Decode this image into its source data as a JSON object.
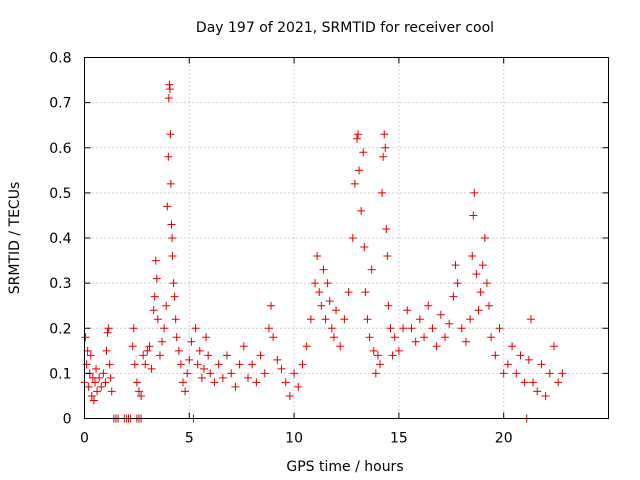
{
  "chart_data": {
    "type": "scatter",
    "title": "Day 197 of 2021, SRMTID for receiver cool",
    "xlabel": "GPS time / hours",
    "ylabel": "SRMTID / TECUs",
    "xlim": [
      0,
      25
    ],
    "ylim": [
      0,
      0.8
    ],
    "x_ticks": [
      0,
      5,
      10,
      15,
      20
    ],
    "x_tick_labels": [
      "0",
      "5",
      "10",
      "15",
      "20"
    ],
    "y_ticks": [
      0,
      0.1,
      0.2,
      0.3,
      0.4,
      0.5,
      0.6,
      0.7,
      0.8
    ],
    "y_tick_labels": [
      "0",
      "0.1",
      "0.2",
      "0.3",
      "0.4",
      "0.5",
      "0.6",
      "0.7",
      "0.8"
    ],
    "grid": true,
    "marker": "plus",
    "color": "#e00000",
    "series": [
      {
        "name": "SRMTID",
        "points": [
          [
            0.0,
            0.08
          ],
          [
            0.05,
            0.18
          ],
          [
            0.1,
            0.12
          ],
          [
            0.15,
            0.15
          ],
          [
            0.2,
            0.07
          ],
          [
            0.25,
            0.1
          ],
          [
            0.3,
            0.14
          ],
          [
            0.35,
            0.05
          ],
          [
            0.4,
            0.09
          ],
          [
            0.45,
            0.04
          ],
          [
            0.5,
            0.08
          ],
          [
            0.55,
            0.11
          ],
          [
            0.6,
            0.06
          ],
          [
            0.7,
            0.09
          ],
          [
            0.8,
            0.07
          ],
          [
            0.9,
            0.1
          ],
          [
            1.0,
            0.08
          ],
          [
            1.05,
            0.15
          ],
          [
            1.1,
            0.19
          ],
          [
            1.15,
            0.2
          ],
          [
            1.2,
            0.12
          ],
          [
            1.25,
            0.09
          ],
          [
            1.3,
            0.06
          ],
          [
            1.4,
            0.0
          ],
          [
            1.5,
            0.0
          ],
          [
            1.6,
            0.0
          ],
          [
            1.9,
            0.0
          ],
          [
            2.0,
            0.0
          ],
          [
            2.1,
            0.0
          ],
          [
            2.2,
            0.0
          ],
          [
            2.5,
            0.0
          ],
          [
            2.6,
            0.0
          ],
          [
            2.7,
            0.0
          ],
          [
            2.3,
            0.16
          ],
          [
            2.35,
            0.2
          ],
          [
            2.4,
            0.12
          ],
          [
            2.5,
            0.08
          ],
          [
            2.6,
            0.06
          ],
          [
            2.7,
            0.05
          ],
          [
            2.8,
            0.14
          ],
          [
            2.9,
            0.12
          ],
          [
            3.0,
            0.15
          ],
          [
            3.1,
            0.16
          ],
          [
            3.2,
            0.11
          ],
          [
            3.3,
            0.24
          ],
          [
            3.35,
            0.27
          ],
          [
            3.4,
            0.35
          ],
          [
            3.45,
            0.31
          ],
          [
            3.5,
            0.22
          ],
          [
            3.6,
            0.14
          ],
          [
            3.7,
            0.17
          ],
          [
            3.8,
            0.2
          ],
          [
            3.9,
            0.25
          ],
          [
            3.95,
            0.47
          ],
          [
            4.0,
            0.58
          ],
          [
            4.02,
            0.71
          ],
          [
            4.05,
            0.74
          ],
          [
            4.08,
            0.73
          ],
          [
            4.1,
            0.63
          ],
          [
            4.12,
            0.52
          ],
          [
            4.15,
            0.43
          ],
          [
            4.18,
            0.4
          ],
          [
            4.2,
            0.36
          ],
          [
            4.25,
            0.3
          ],
          [
            4.3,
            0.27
          ],
          [
            4.35,
            0.22
          ],
          [
            4.4,
            0.18
          ],
          [
            4.5,
            0.15
          ],
          [
            4.6,
            0.12
          ],
          [
            4.7,
            0.08
          ],
          [
            4.8,
            0.06
          ],
          [
            4.9,
            0.1
          ],
          [
            5.0,
            0.13
          ],
          [
            5.1,
            0.17
          ],
          [
            5.2,
            0.0
          ],
          [
            5.3,
            0.2
          ],
          [
            5.4,
            0.12
          ],
          [
            5.5,
            0.15
          ],
          [
            5.6,
            0.09
          ],
          [
            5.7,
            0.11
          ],
          [
            5.8,
            0.18
          ],
          [
            5.9,
            0.14
          ],
          [
            6.0,
            0.1
          ],
          [
            6.2,
            0.08
          ],
          [
            6.4,
            0.12
          ],
          [
            6.6,
            0.09
          ],
          [
            6.8,
            0.14
          ],
          [
            7.0,
            0.1
          ],
          [
            7.2,
            0.07
          ],
          [
            7.4,
            0.12
          ],
          [
            7.6,
            0.16
          ],
          [
            7.8,
            0.09
          ],
          [
            8.0,
            0.12
          ],
          [
            8.2,
            0.08
          ],
          [
            8.4,
            0.14
          ],
          [
            8.6,
            0.1
          ],
          [
            8.8,
            0.2
          ],
          [
            8.9,
            0.25
          ],
          [
            9.0,
            0.18
          ],
          [
            9.2,
            0.13
          ],
          [
            9.4,
            0.11
          ],
          [
            9.6,
            0.08
          ],
          [
            9.8,
            0.05
          ],
          [
            10.0,
            0.1
          ],
          [
            10.2,
            0.07
          ],
          [
            10.4,
            0.12
          ],
          [
            10.6,
            0.16
          ],
          [
            10.8,
            0.22
          ],
          [
            11.0,
            0.3
          ],
          [
            11.1,
            0.36
          ],
          [
            11.2,
            0.28
          ],
          [
            11.3,
            0.25
          ],
          [
            11.4,
            0.33
          ],
          [
            11.5,
            0.22
          ],
          [
            11.6,
            0.3
          ],
          [
            11.7,
            0.26
          ],
          [
            11.8,
            0.2
          ],
          [
            11.9,
            0.18
          ],
          [
            12.0,
            0.24
          ],
          [
            12.2,
            0.16
          ],
          [
            12.4,
            0.22
          ],
          [
            12.6,
            0.28
          ],
          [
            12.8,
            0.4
          ],
          [
            12.9,
            0.52
          ],
          [
            13.0,
            0.62
          ],
          [
            13.05,
            0.63
          ],
          [
            13.1,
            0.55
          ],
          [
            13.2,
            0.46
          ],
          [
            13.3,
            0.59
          ],
          [
            13.35,
            0.38
          ],
          [
            13.4,
            0.28
          ],
          [
            13.5,
            0.22
          ],
          [
            13.6,
            0.18
          ],
          [
            13.7,
            0.33
          ],
          [
            13.8,
            0.15
          ],
          [
            13.9,
            0.1
          ],
          [
            14.0,
            0.14
          ],
          [
            14.1,
            0.12
          ],
          [
            14.2,
            0.5
          ],
          [
            14.25,
            0.58
          ],
          [
            14.3,
            0.63
          ],
          [
            14.35,
            0.6
          ],
          [
            14.4,
            0.42
          ],
          [
            14.45,
            0.36
          ],
          [
            14.5,
            0.25
          ],
          [
            14.6,
            0.2
          ],
          [
            14.7,
            0.14
          ],
          [
            14.8,
            0.18
          ],
          [
            15.0,
            0.15
          ],
          [
            15.2,
            0.2
          ],
          [
            15.4,
            0.24
          ],
          [
            15.6,
            0.2
          ],
          [
            15.8,
            0.17
          ],
          [
            16.0,
            0.22
          ],
          [
            16.2,
            0.18
          ],
          [
            16.4,
            0.25
          ],
          [
            16.6,
            0.2
          ],
          [
            16.8,
            0.16
          ],
          [
            17.0,
            0.23
          ],
          [
            17.2,
            0.18
          ],
          [
            17.4,
            0.21
          ],
          [
            17.6,
            0.27
          ],
          [
            17.7,
            0.34
          ],
          [
            17.8,
            0.3
          ],
          [
            18.0,
            0.2
          ],
          [
            18.2,
            0.17
          ],
          [
            18.4,
            0.22
          ],
          [
            18.5,
            0.36
          ],
          [
            18.55,
            0.45
          ],
          [
            18.6,
            0.5
          ],
          [
            18.7,
            0.32
          ],
          [
            18.8,
            0.24
          ],
          [
            18.9,
            0.28
          ],
          [
            19.0,
            0.34
          ],
          [
            19.1,
            0.4
          ],
          [
            19.2,
            0.3
          ],
          [
            19.3,
            0.25
          ],
          [
            19.4,
            0.18
          ],
          [
            19.6,
            0.14
          ],
          [
            19.8,
            0.2
          ],
          [
            20.0,
            0.1
          ],
          [
            20.2,
            0.12
          ],
          [
            20.4,
            0.16
          ],
          [
            20.6,
            0.1
          ],
          [
            20.8,
            0.14
          ],
          [
            21.0,
            0.08
          ],
          [
            21.1,
            0.0
          ],
          [
            21.2,
            0.13
          ],
          [
            21.3,
            0.22
          ],
          [
            21.4,
            0.08
          ],
          [
            21.6,
            0.06
          ],
          [
            21.8,
            0.12
          ],
          [
            22.0,
            0.05
          ],
          [
            22.2,
            0.1
          ],
          [
            22.4,
            0.16
          ],
          [
            22.6,
            0.08
          ],
          [
            22.8,
            0.1
          ]
        ]
      }
    ]
  }
}
